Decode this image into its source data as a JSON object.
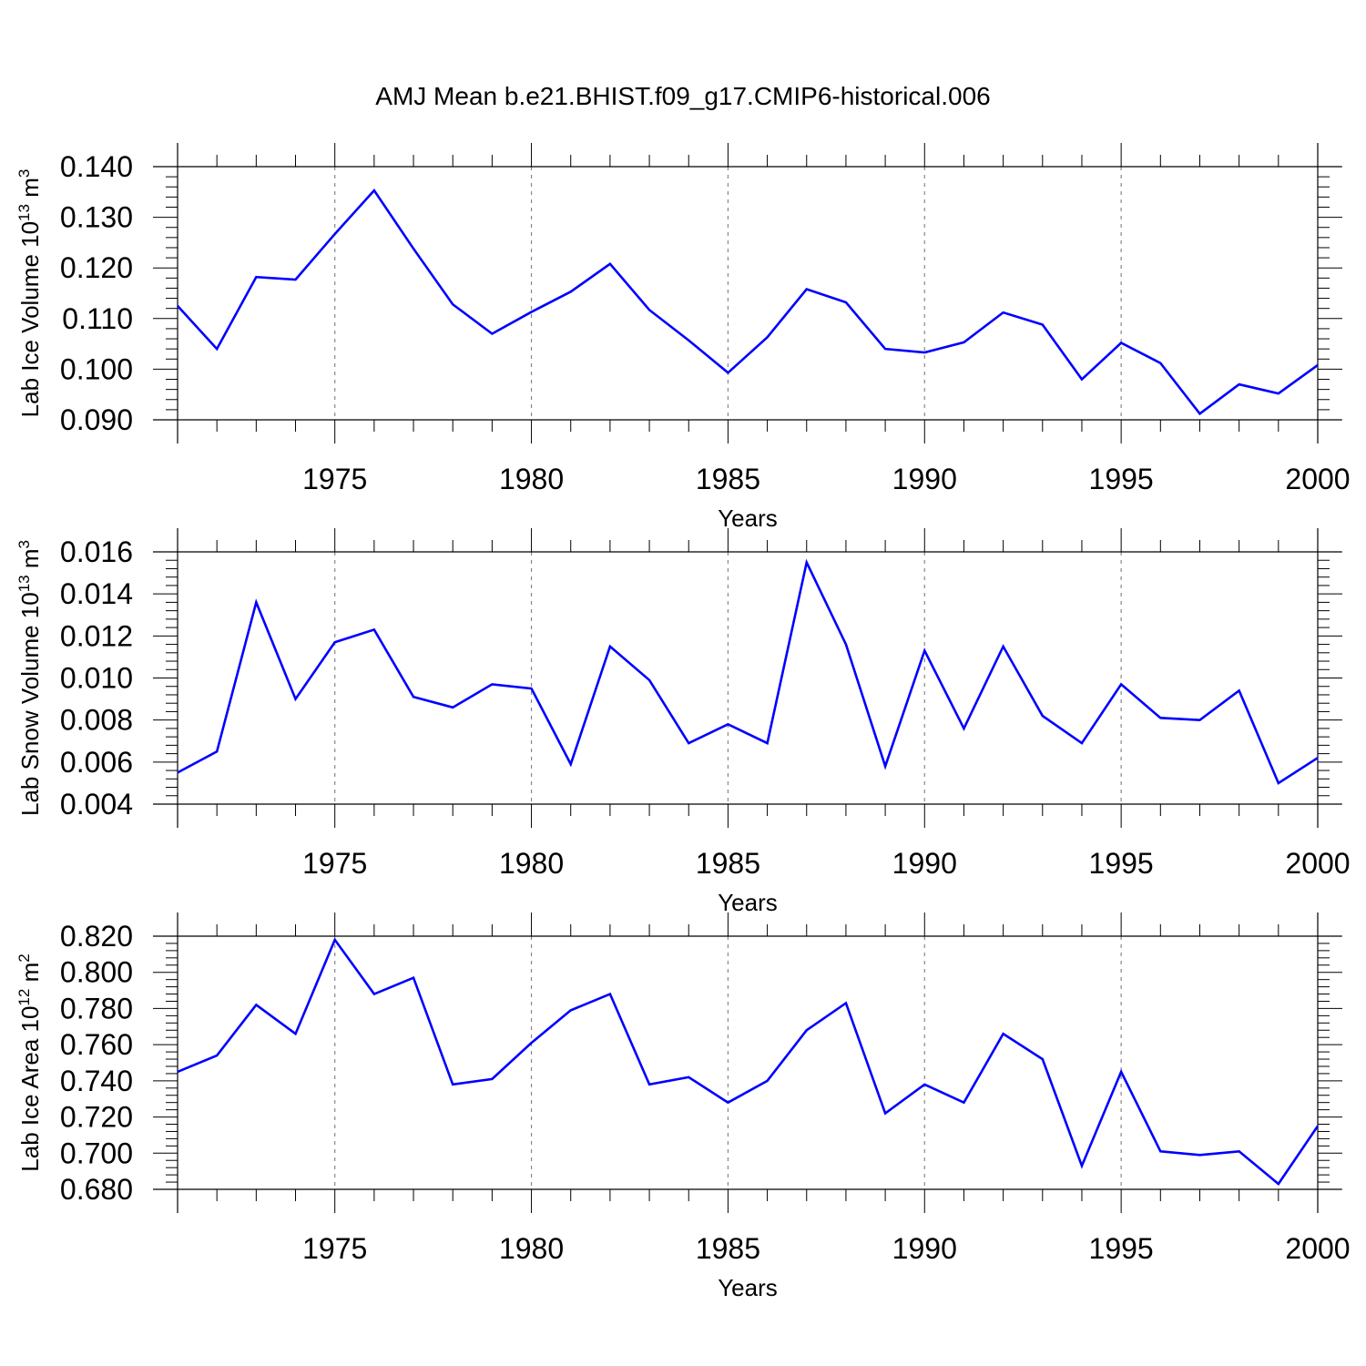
{
  "title": "AMJ Mean b.e21.BHIST.f09_g17.CMIP6-historical.006",
  "series_color": "#0000ff",
  "chart_data": [
    {
      "type": "line",
      "title": "AMJ Mean b.e21.BHIST.f09_g17.CMIP6-historical.006",
      "xlabel": "Years",
      "ylabel_base": "Lab Ice Volume 10",
      "ylabel_exp": "13",
      "ylabel_unit": " m",
      "ylabel_unit_exp": "3",
      "xlim": [
        1971,
        2000
      ],
      "ylim": [
        0.09,
        0.14
      ],
      "x_ticks": [
        1975,
        1980,
        1985,
        1990,
        1995,
        2000
      ],
      "y_ticks": [
        "0.090",
        "0.100",
        "0.110",
        "0.120",
        "0.130",
        "0.140"
      ],
      "x": [
        1971,
        1972,
        1973,
        1974,
        1975,
        1976,
        1977,
        1978,
        1979,
        1980,
        1981,
        1982,
        1983,
        1984,
        1985,
        1986,
        1987,
        1988,
        1989,
        1990,
        1991,
        1992,
        1993,
        1994,
        1995,
        1996,
        1997,
        1998,
        1999,
        2000
      ],
      "values": [
        0.1125,
        0.104,
        0.1182,
        0.1177,
        0.1267,
        0.1353,
        0.1238,
        0.1128,
        0.107,
        0.1113,
        0.1153,
        0.1208,
        0.1117,
        0.1057,
        0.0993,
        0.1063,
        0.1158,
        0.1132,
        0.104,
        0.1033,
        0.1053,
        0.1112,
        0.1088,
        0.098,
        0.1052,
        0.1012,
        0.0912,
        0.097,
        0.0952,
        0.1008
      ]
    },
    {
      "type": "line",
      "xlabel": "Years",
      "ylabel_base": "Lab Snow Volume 10",
      "ylabel_exp": "13",
      "ylabel_unit": " m",
      "ylabel_unit_exp": "3",
      "xlim": [
        1971,
        2000
      ],
      "ylim": [
        0.004,
        0.016
      ],
      "x_ticks": [
        1975,
        1980,
        1985,
        1990,
        1995,
        2000
      ],
      "y_ticks": [
        "0.004",
        "0.006",
        "0.008",
        "0.010",
        "0.012",
        "0.014",
        "0.016"
      ],
      "x": [
        1971,
        1972,
        1973,
        1974,
        1975,
        1976,
        1977,
        1978,
        1979,
        1980,
        1981,
        1982,
        1983,
        1984,
        1985,
        1986,
        1987,
        1988,
        1989,
        1990,
        1991,
        1992,
        1993,
        1994,
        1995,
        1996,
        1997,
        1998,
        1999,
        2000
      ],
      "values": [
        0.0055,
        0.0065,
        0.0136,
        0.009,
        0.0117,
        0.0123,
        0.0091,
        0.0086,
        0.0097,
        0.0095,
        0.0059,
        0.0115,
        0.0099,
        0.0069,
        0.0078,
        0.0069,
        0.0155,
        0.0116,
        0.0058,
        0.0113,
        0.0076,
        0.0115,
        0.0082,
        0.0069,
        0.0097,
        0.0081,
        0.008,
        0.0094,
        0.005,
        0.0062
      ]
    },
    {
      "type": "line",
      "xlabel": "Years",
      "ylabel_base": "Lab Ice Area 10",
      "ylabel_exp": "12",
      "ylabel_unit": " m",
      "ylabel_unit_exp": "2",
      "xlim": [
        1971,
        2000
      ],
      "ylim": [
        0.68,
        0.82
      ],
      "x_ticks": [
        1975,
        1980,
        1985,
        1990,
        1995,
        2000
      ],
      "y_ticks": [
        "0.680",
        "0.700",
        "0.720",
        "0.740",
        "0.760",
        "0.780",
        "0.800",
        "0.820"
      ],
      "x": [
        1971,
        1972,
        1973,
        1974,
        1975,
        1976,
        1977,
        1978,
        1979,
        1980,
        1981,
        1982,
        1983,
        1984,
        1985,
        1986,
        1987,
        1988,
        1989,
        1990,
        1991,
        1992,
        1993,
        1994,
        1995,
        1996,
        1997,
        1998,
        1999,
        2000
      ],
      "values": [
        0.745,
        0.754,
        0.782,
        0.766,
        0.818,
        0.788,
        0.797,
        0.738,
        0.741,
        0.761,
        0.779,
        0.788,
        0.738,
        0.742,
        0.728,
        0.74,
        0.768,
        0.783,
        0.722,
        0.738,
        0.728,
        0.766,
        0.752,
        0.693,
        0.745,
        0.701,
        0.699,
        0.701,
        0.683,
        0.715
      ]
    }
  ]
}
